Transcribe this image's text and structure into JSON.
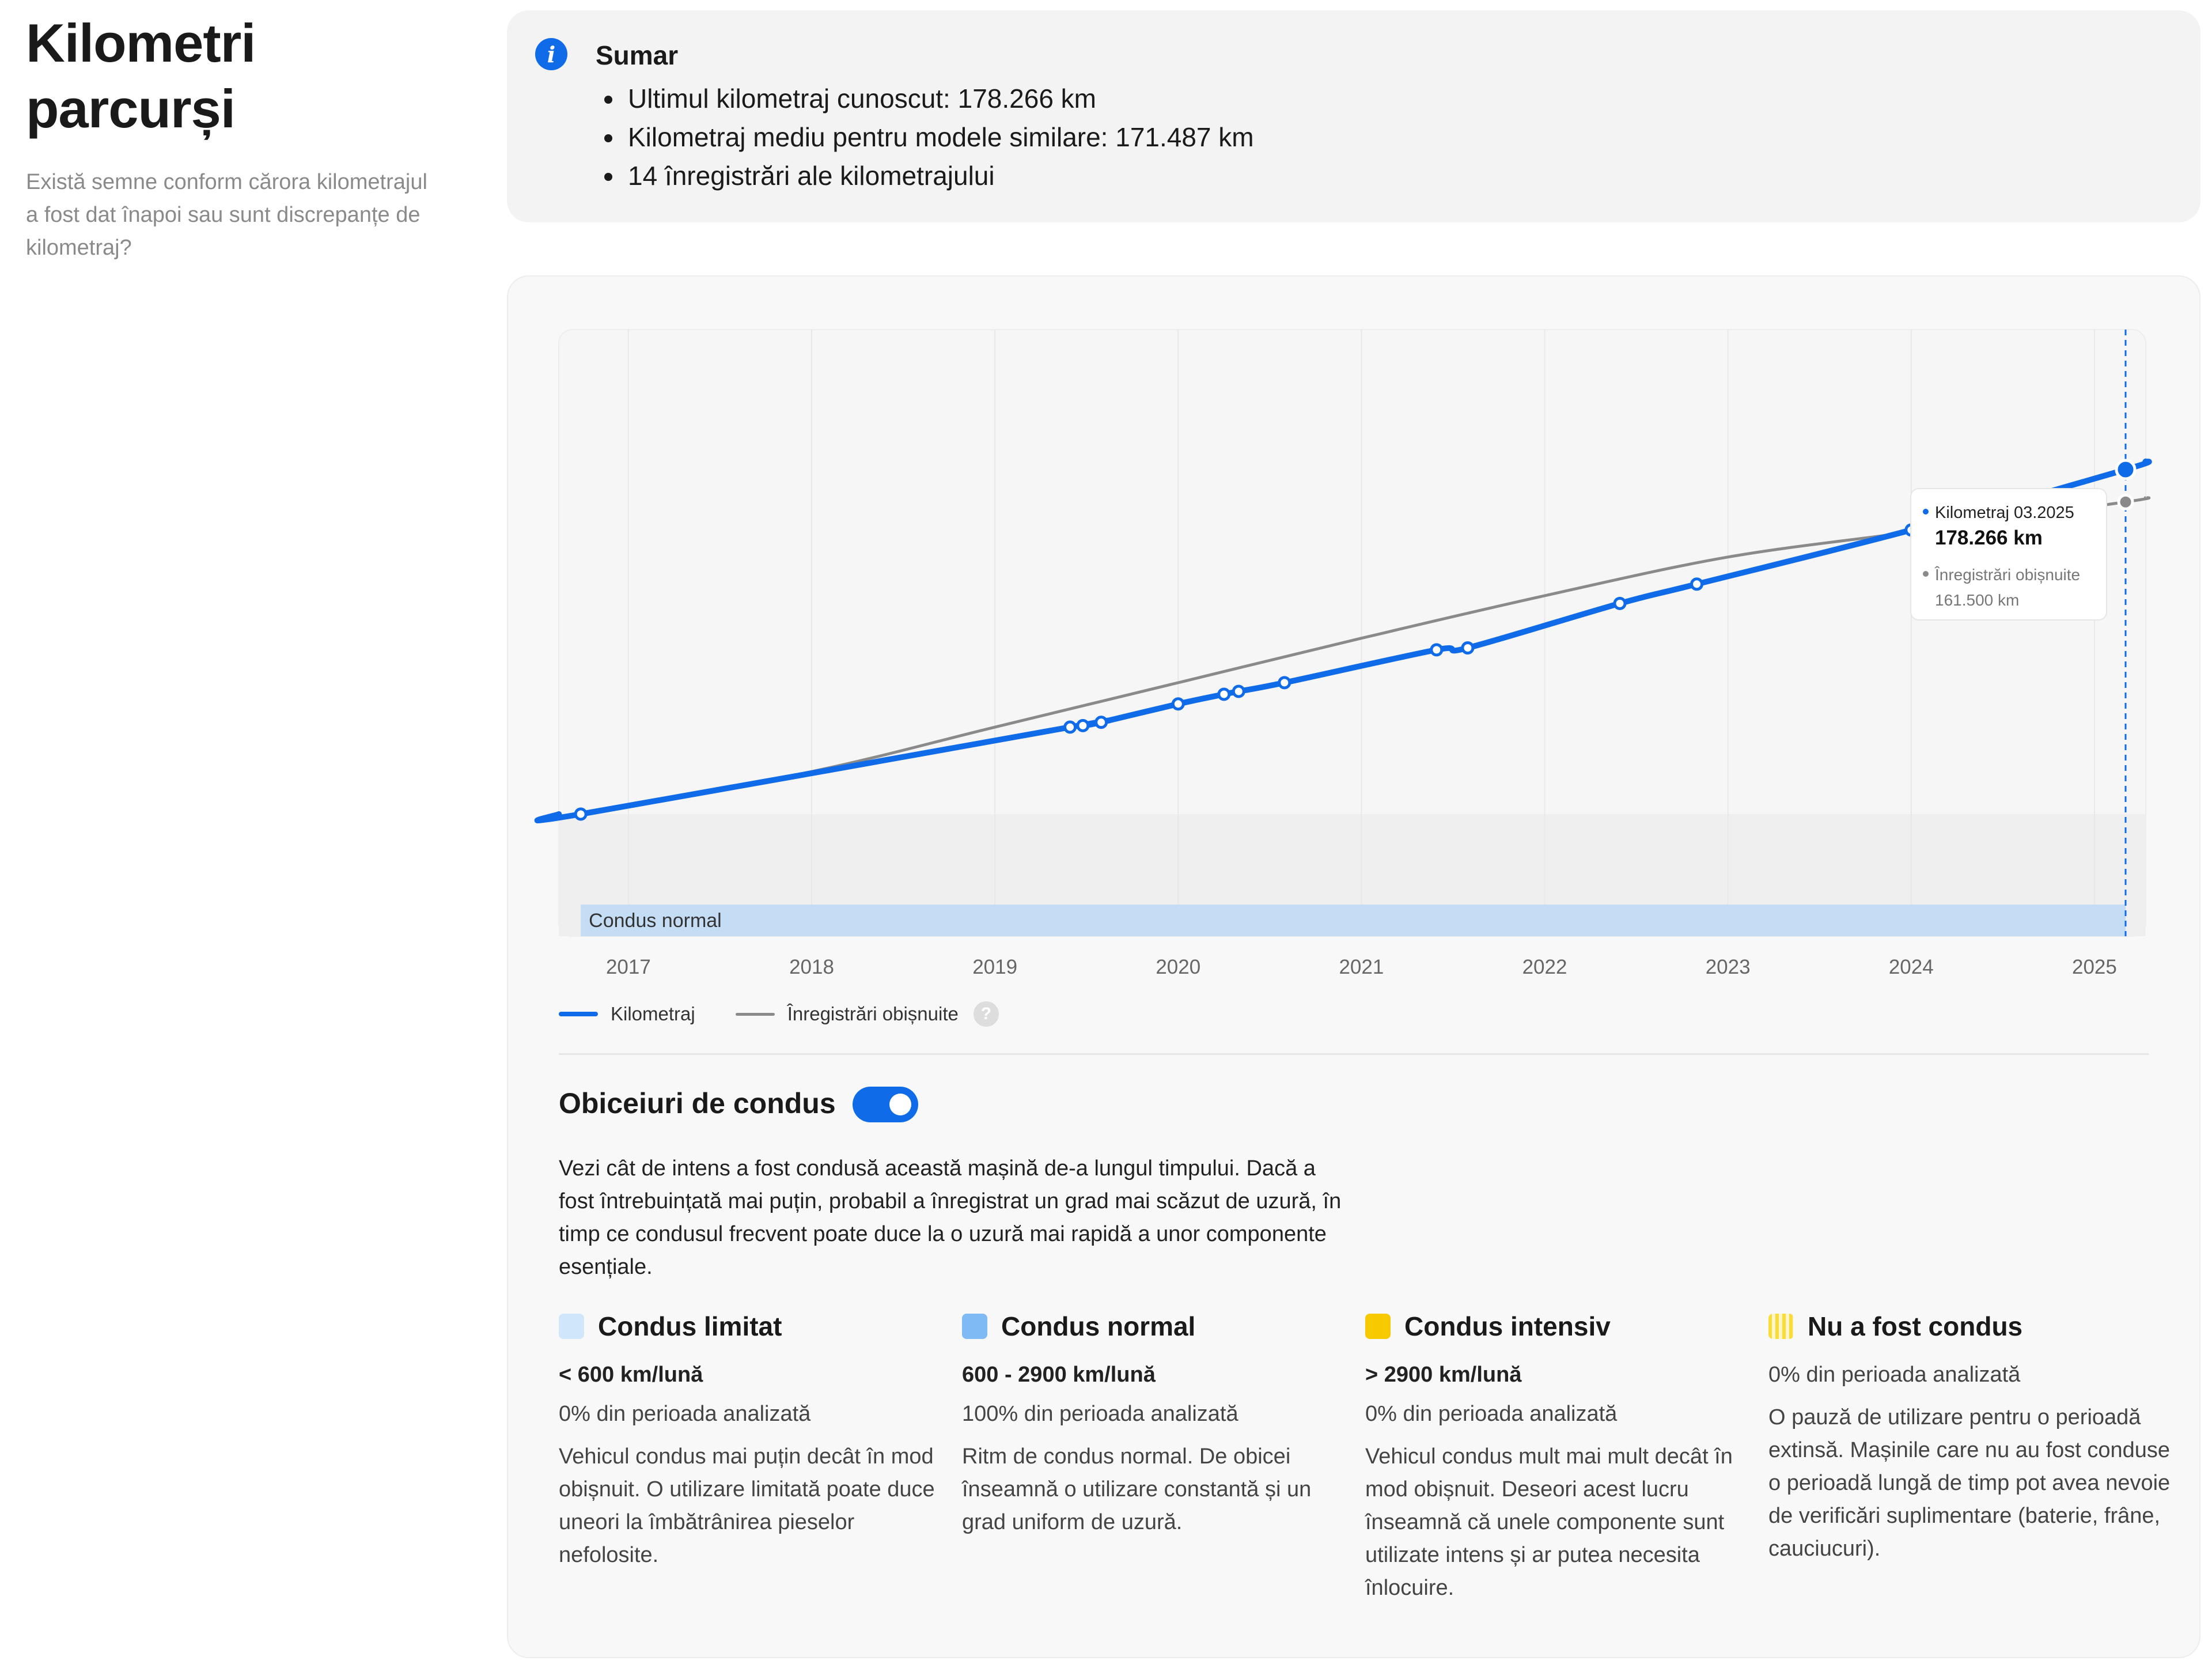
{
  "page": {
    "title": "Kilometri parcurși",
    "subtitle": "Există semne conform cărora kilometrajul a fost dat înapoi sau sunt discrepanțe de kilometraj?"
  },
  "summary": {
    "icon": "info-icon",
    "title": "Sumar",
    "items": [
      "Ultimul kilometraj cunoscut: 178.266 km",
      "Kilometraj mediu pentru modele similare: 171.487 km",
      "14 înregistrări ale kilometrajului"
    ]
  },
  "chart_data": {
    "type": "line",
    "title": "",
    "xlabel": "",
    "ylabel": "",
    "x_ticks": [
      "2017",
      "2018",
      "2019",
      "2020",
      "2021",
      "2022",
      "2023",
      "2024",
      "2025"
    ],
    "xlim": [
      2016.62,
      2025.28
    ],
    "ylim": [
      -50000,
      210000
    ],
    "grid": true,
    "legend_position": "bottom-left",
    "series": [
      {
        "name": "Kilometraj",
        "color": "#0f6be8",
        "points": [
          {
            "x": 2016.74,
            "y": 0
          },
          {
            "x": 2019.41,
            "y": 45000
          },
          {
            "x": 2019.48,
            "y": 45800
          },
          {
            "x": 2019.58,
            "y": 47500
          },
          {
            "x": 2020.0,
            "y": 57000
          },
          {
            "x": 2020.25,
            "y": 62000
          },
          {
            "x": 2020.33,
            "y": 63500
          },
          {
            "x": 2020.58,
            "y": 68000
          },
          {
            "x": 2021.41,
            "y": 85000
          },
          {
            "x": 2021.58,
            "y": 86000
          },
          {
            "x": 2022.41,
            "y": 109000
          },
          {
            "x": 2022.83,
            "y": 119000
          },
          {
            "x": 2024.0,
            "y": 147000
          },
          {
            "x": 2025.17,
            "y": 178266
          }
        ]
      },
      {
        "name": "Înregistrări obișnuite",
        "color": "#8a8a8a",
        "points": [
          {
            "x": 2016.74,
            "y": 0
          },
          {
            "x": 2018.0,
            "y": 22000
          },
          {
            "x": 2019.0,
            "y": 45000
          },
          {
            "x": 2020.0,
            "y": 68000
          },
          {
            "x": 2021.0,
            "y": 91000
          },
          {
            "x": 2022.0,
            "y": 113000
          },
          {
            "x": 2023.0,
            "y": 133000
          },
          {
            "x": 2024.0,
            "y": 146000
          },
          {
            "x": 2025.17,
            "y": 161500
          }
        ]
      }
    ],
    "bands": [
      {
        "label": "Condus normal",
        "from": 2016.74,
        "to": 2025.17,
        "color": "#c4dcf4"
      }
    ],
    "tooltip": {
      "title": "Kilometraj 03.2025",
      "value": "178.266 km",
      "secondary_title": "Înregistrări obișnuite",
      "secondary_value": "161.500 km",
      "x": 2025.17
    }
  },
  "legend": {
    "items": [
      {
        "label": "Kilometraj",
        "color": "#0f6be8"
      },
      {
        "label": "Înregistrări obișnuite",
        "color": "#8a8a8a"
      }
    ],
    "help": "?"
  },
  "habits": {
    "title": "Obiceiuri de condus",
    "toggle_on": true,
    "description": "Vezi cât de intens a fost condusă această mașină de-a lungul timpului. Dacă a fost întrebuințată mai puțin, probabil a înregistrat un grad mai scăzut de uzură, în timp ce condusul frecvent poate duce la o uzură mai rapidă a unor componente esențiale.",
    "categories": [
      {
        "name": "Condus limitat",
        "color": "#cfe6fb",
        "range": "< 600 km/lună",
        "percent": "0% din perioada analizată",
        "text": "Vehicul condus mai puțin decât în mod obișnuit. O utilizare limitată poate duce uneori la îmbătrânirea pieselor nefolosite."
      },
      {
        "name": "Condus normal",
        "color": "#7fbaf5",
        "range": "600 - 2900 km/lună",
        "percent": "100% din perioada analizată",
        "text": "Ritm de condus normal. De obicei înseamnă o utilizare constantă și un grad uniform de uzură."
      },
      {
        "name": "Condus intensiv",
        "color": "#f7c900",
        "range": "> 2900 km/lună",
        "percent": "0% din perioada analizată",
        "text": "Vehicul condus mult mai mult decât în mod obișnuit. Deseori acest lucru înseamnă că unele componente sunt utilizate intens și ar putea necesita înlocuire."
      },
      {
        "name": "Nu a fost condus",
        "color": "#fdeea0",
        "range": "",
        "percent": "0% din perioada analizată",
        "text": "O pauză de utilizare pentru o perioadă extinsă. Mașinile care nu au fost conduse o perioadă lungă de timp pot avea nevoie de verificări suplimentare (baterie, frâne, cauciucuri)."
      }
    ]
  }
}
